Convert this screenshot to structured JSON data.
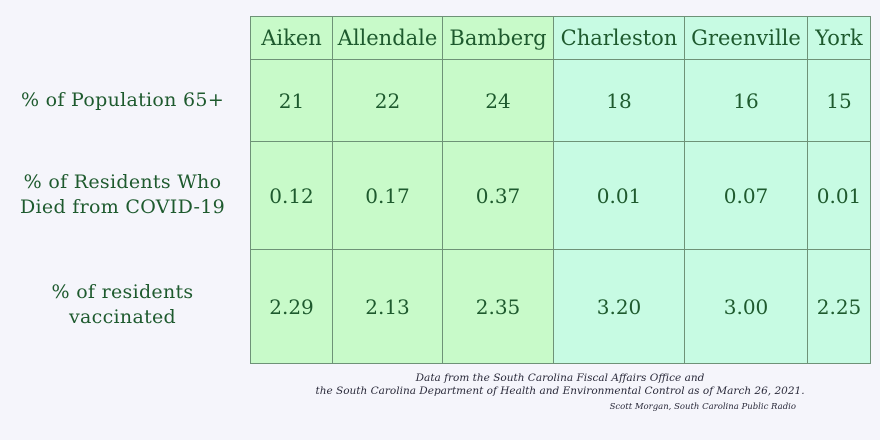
{
  "counties": [
    "Aiken",
    "Allendale",
    "Bamberg",
    "Charleston",
    "Greenville",
    "York"
  ],
  "rows": [
    {
      "label_lines": [
        "% of Population 65+"
      ],
      "values": [
        "21",
        "22",
        "24",
        "18",
        "16",
        "15"
      ]
    },
    {
      "label_lines": [
        "% of Residents Who",
        "Died from COVID-19"
      ],
      "values": [
        "0.12",
        "0.17",
        "0.37",
        "0.01",
        "0.07",
        "0.01"
      ]
    },
    {
      "label_lines": [
        "% of residents",
        "vaccinated"
      ],
      "values": [
        "2.29",
        "2.13",
        "2.35",
        "3.20",
        "3.00",
        "2.25"
      ]
    }
  ],
  "colors": {
    "group_1_fill": "#c8fac9",
    "group_2_fill": "#c7fbe3",
    "text": "#1e5a2e"
  },
  "footnote": {
    "line1": "Data from the South Carolina Fiscal Affairs Office and",
    "line2": "the South Carolina Department of Health and Environmental Control as of March 26, 2021."
  },
  "credit": "Scott Morgan, South Carolina Public Radio"
}
